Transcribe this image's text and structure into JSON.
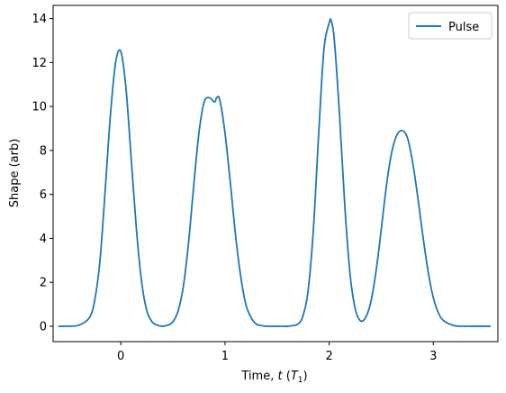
{
  "chart_data": {
    "type": "line",
    "xlabel_main": "Time, ",
    "xlabel_var": "t",
    "xlabel_unit_open": " (",
    "xlabel_unit_var": "T",
    "xlabel_unit_sub": "1",
    "xlabel_unit_close": ")",
    "ylabel": "Shape (arb)",
    "xlim": [
      -0.65,
      3.62
    ],
    "ylim": [
      -0.7,
      14.6
    ],
    "xticks": [
      0,
      1,
      2,
      3
    ],
    "yticks": [
      0,
      2,
      4,
      6,
      8,
      10,
      12,
      14
    ],
    "legend_position": "top-right",
    "grid": false,
    "series": [
      {
        "name": "Pulse",
        "color": "#1f77b4",
        "x": [
          -0.6,
          -0.5,
          -0.4,
          -0.3,
          -0.25,
          -0.2,
          -0.15,
          -0.1,
          -0.05,
          0.0,
          0.05,
          0.1,
          0.15,
          0.2,
          0.25,
          0.3,
          0.35,
          0.4,
          0.45,
          0.5,
          0.55,
          0.6,
          0.65,
          0.7,
          0.75,
          0.8,
          0.85,
          0.9,
          0.92,
          0.95,
          1.0,
          1.05,
          1.1,
          1.15,
          1.2,
          1.25,
          1.3,
          1.35,
          1.4,
          1.5,
          1.6,
          1.7,
          1.75,
          1.8,
          1.85,
          1.9,
          1.95,
          2.0,
          2.02,
          2.05,
          2.1,
          2.15,
          2.2,
          2.25,
          2.3,
          2.35,
          2.4,
          2.45,
          2.5,
          2.55,
          2.6,
          2.65,
          2.7,
          2.75,
          2.8,
          2.85,
          2.9,
          2.95,
          3.0,
          3.05,
          3.1,
          3.2,
          3.3,
          3.4,
          3.55
        ],
        "y": [
          0.0,
          0.0,
          0.05,
          0.4,
          1.2,
          3.0,
          6.2,
          9.6,
          12.0,
          12.5,
          10.8,
          7.6,
          4.4,
          2.0,
          0.7,
          0.2,
          0.05,
          0.0,
          0.05,
          0.2,
          0.7,
          1.8,
          3.8,
          6.4,
          8.8,
          10.2,
          10.4,
          10.2,
          10.4,
          10.3,
          8.8,
          6.6,
          4.2,
          2.3,
          1.0,
          0.4,
          0.1,
          0.03,
          0.0,
          0.0,
          0.0,
          0.1,
          0.5,
          1.7,
          4.5,
          8.8,
          12.6,
          13.8,
          13.9,
          13.0,
          9.6,
          5.5,
          2.4,
          0.8,
          0.25,
          0.4,
          1.1,
          2.5,
          4.4,
          6.4,
          7.9,
          8.7,
          8.9,
          8.6,
          7.5,
          5.9,
          4.1,
          2.5,
          1.3,
          0.6,
          0.25,
          0.03,
          0.0,
          0.0,
          0.0
        ]
      }
    ]
  }
}
